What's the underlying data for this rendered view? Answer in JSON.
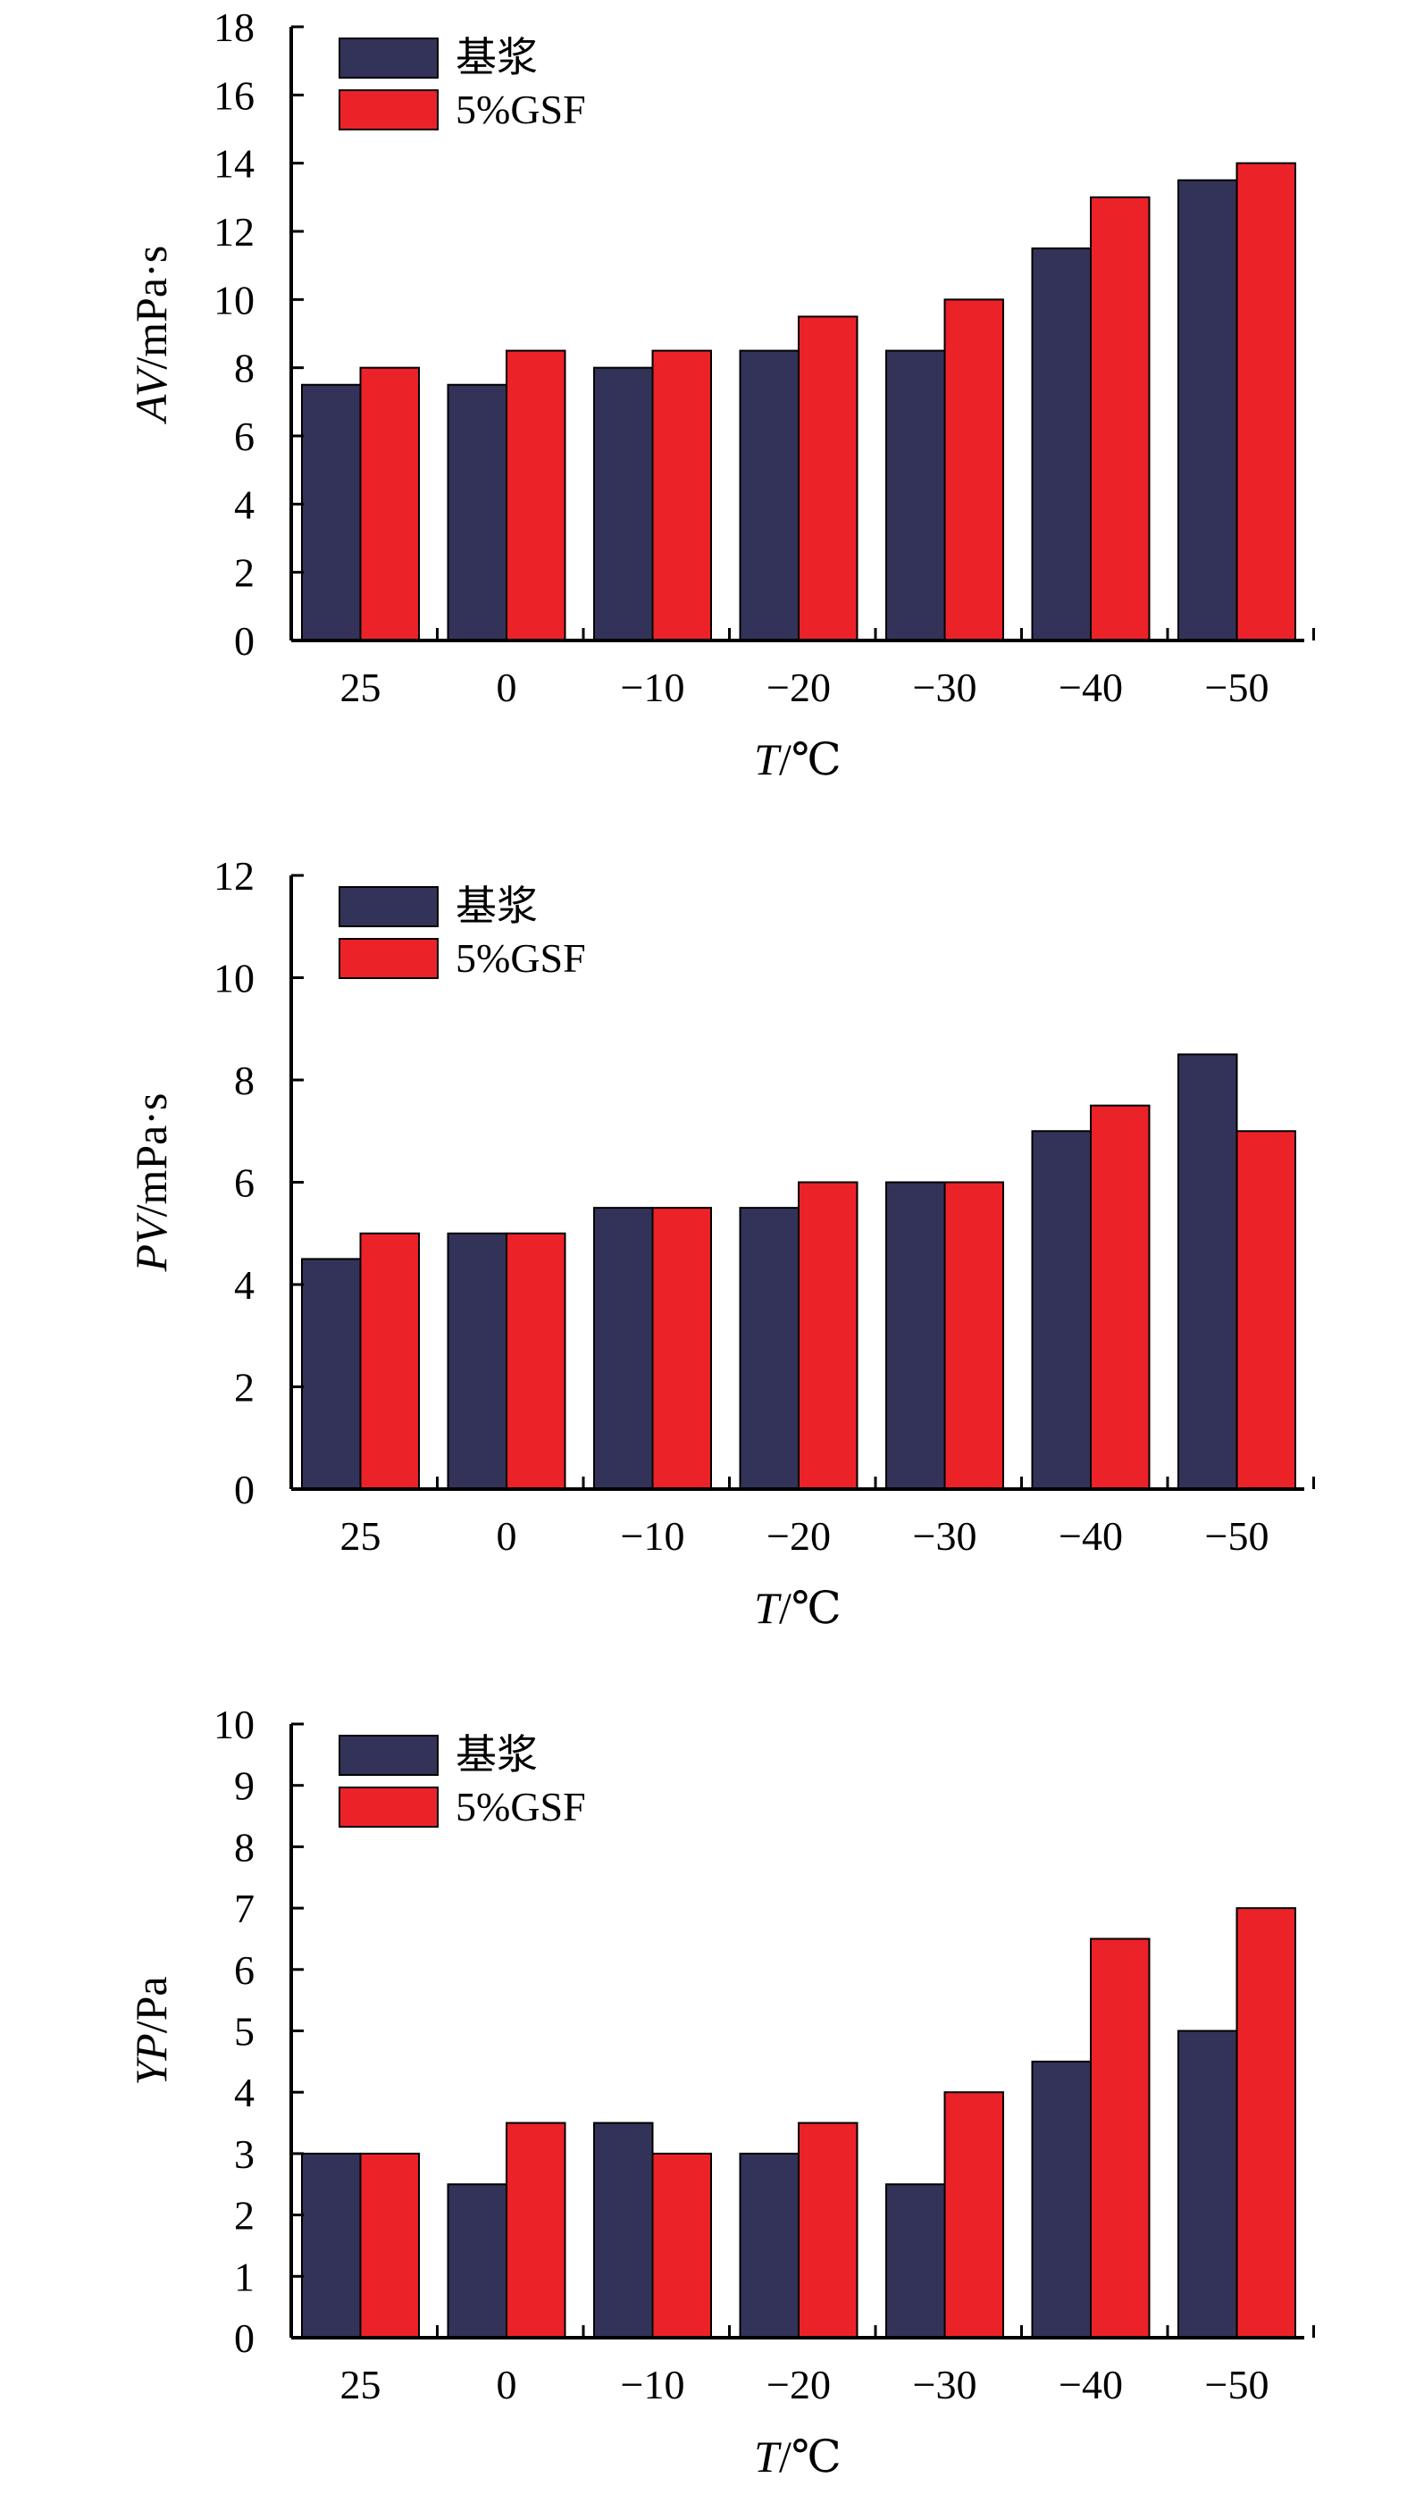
{
  "colors": {
    "base": "#333359",
    "gsf": "#ec2229",
    "outline": "#000000"
  },
  "chart_data": [
    {
      "type": "bar",
      "categories": [
        "25",
        "0",
        "−10",
        "−20",
        "−30",
        "−40",
        "−50"
      ],
      "series": [
        {
          "name": "基浆",
          "values": [
            7.5,
            7.5,
            8,
            8.5,
            8.5,
            11.5,
            13.5
          ]
        },
        {
          "name": "5%GSF",
          "values": [
            8,
            8.5,
            8.5,
            9.5,
            10,
            13,
            14
          ]
        }
      ],
      "ylim": [
        0,
        18
      ],
      "yticks": [
        "0",
        "2",
        "4",
        "6",
        "8",
        "10",
        "12",
        "14",
        "16",
        "18"
      ],
      "xlabel": {
        "var": "T",
        "unit": "/℃"
      },
      "ylabel": {
        "var": "AV",
        "unit": "/mPa·s"
      },
      "legend": "top-left",
      "grid": false
    },
    {
      "type": "bar",
      "categories": [
        "25",
        "0",
        "−10",
        "−20",
        "−30",
        "−40",
        "−50"
      ],
      "series": [
        {
          "name": "基浆",
          "values": [
            4.5,
            5,
            5.5,
            5.5,
            6,
            7,
            8.5
          ]
        },
        {
          "name": "5%GSF",
          "values": [
            5,
            5,
            5.5,
            6,
            6,
            7.5,
            7
          ]
        }
      ],
      "ylim": [
        0,
        12
      ],
      "yticks": [
        "0",
        "2",
        "4",
        "6",
        "8",
        "10",
        "12"
      ],
      "xlabel": {
        "var": "T",
        "unit": "/℃"
      },
      "ylabel": {
        "var": "PV",
        "unit": "/mPa·s"
      },
      "legend": "top-left",
      "grid": false
    },
    {
      "type": "bar",
      "categories": [
        "25",
        "0",
        "−10",
        "−20",
        "−30",
        "−40",
        "−50"
      ],
      "series": [
        {
          "name": "基浆",
          "values": [
            3,
            2.5,
            3.5,
            3,
            2.5,
            4.5,
            5
          ]
        },
        {
          "name": "5%GSF",
          "values": [
            3,
            3.5,
            3,
            3.5,
            4,
            6.5,
            7
          ]
        }
      ],
      "ylim": [
        0,
        10
      ],
      "yticks": [
        "0",
        "1",
        "2",
        "3",
        "4",
        "5",
        "6",
        "7",
        "8",
        "9",
        "10"
      ],
      "xlabel": {
        "var": "T",
        "unit": "/℃"
      },
      "ylabel": {
        "var": "YP",
        "unit": "/Pa"
      },
      "legend": "top-left",
      "grid": false
    }
  ]
}
